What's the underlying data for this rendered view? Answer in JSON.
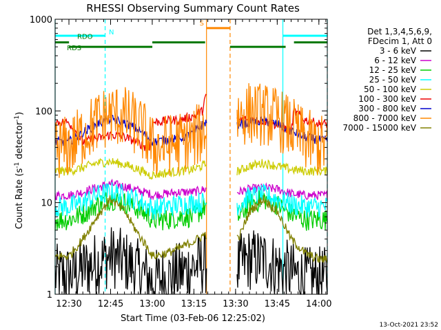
{
  "chart_data": {
    "type": "line",
    "title": "RHESSI Observing Summary Count Rates",
    "xlabel": "Start Time (03-Feb-06 12:25:02)",
    "ylabel_parts": [
      "Count Rate (s",
      "-1",
      " detector",
      "-1",
      ")"
    ],
    "y_scale": "log",
    "ylim": [
      1,
      1000
    ],
    "xlim_minutes": [
      0,
      98
    ],
    "x_ticks": [
      {
        "label": "12:30",
        "min": 4.97
      },
      {
        "label": "12:45",
        "min": 19.97
      },
      {
        "label": "13:00",
        "min": 34.97
      },
      {
        "label": "13:15",
        "min": 49.97
      },
      {
        "label": "13:30",
        "min": 64.97
      },
      {
        "label": "13:45",
        "min": 79.97
      },
      {
        "label": "14:00",
        "min": 94.97
      }
    ],
    "y_ticks": [
      {
        "label": "1000",
        "value": 1000
      },
      {
        "label": "100",
        "value": 100
      },
      {
        "label": "10",
        "value": 10
      },
      {
        "label": "1",
        "value": 1
      }
    ],
    "legend_header": [
      "Det 1,3,4,5,6,9,",
      "FDecim 1, Att 0"
    ],
    "legend_position": "right",
    "data_gap_minutes": [
      54.5,
      65.5
    ],
    "series": [
      {
        "name": "3 - 6 keV",
        "color": "#000000",
        "x": [
          0,
          5,
          10,
          15,
          20,
          25,
          30,
          34,
          35,
          40,
          45,
          50,
          54,
          66,
          70,
          75,
          80,
          85,
          90,
          95,
          98
        ],
        "y": [
          1.6,
          1.6,
          1.9,
          2.2,
          2.6,
          2.3,
          1.8,
          1.5,
          1.4,
          1.5,
          1.7,
          2.0,
          2.2,
          2.0,
          2.4,
          2.4,
          2.0,
          1.7,
          1.5,
          1.5,
          1.5
        ]
      },
      {
        "name": "6 - 12 keV",
        "color": "#cc00cc",
        "x": [
          0,
          5,
          10,
          15,
          20,
          25,
          30,
          34,
          35,
          40,
          45,
          50,
          54,
          66,
          70,
          75,
          80,
          85,
          90,
          95,
          98
        ],
        "y": [
          12,
          12,
          13,
          14.5,
          16,
          15,
          13.5,
          12.5,
          12,
          12.5,
          13,
          13,
          14,
          13,
          14,
          14.5,
          14,
          12.5,
          12,
          12,
          12
        ]
      },
      {
        "name": "12 - 25 keV",
        "color": "#00cc00",
        "x": [
          0,
          5,
          10,
          15,
          20,
          25,
          30,
          34,
          35,
          40,
          45,
          50,
          54,
          66,
          70,
          75,
          80,
          85,
          90,
          95,
          98
        ],
        "y": [
          6.5,
          6.5,
          7.5,
          9.5,
          11,
          10,
          8.5,
          7,
          6.5,
          6.5,
          7,
          7,
          9,
          7,
          9.5,
          11,
          9.5,
          7.5,
          6.5,
          6.5,
          6.5
        ]
      },
      {
        "name": "25 - 50 keV",
        "color": "#00ffff",
        "x": [
          0,
          5,
          10,
          15,
          20,
          25,
          30,
          34,
          35,
          40,
          45,
          50,
          54,
          66,
          70,
          75,
          80,
          85,
          90,
          95,
          98
        ],
        "y": [
          9,
          9,
          10,
          12,
          13,
          12,
          10.5,
          9,
          8.5,
          9,
          9.5,
          10,
          10,
          9.5,
          11.5,
          12,
          11,
          9.5,
          9,
          9,
          9
        ]
      },
      {
        "name": "50 - 100 keV",
        "color": "#cccc00",
        "x": [
          0,
          5,
          10,
          15,
          20,
          25,
          30,
          34,
          35,
          40,
          45,
          50,
          54,
          66,
          70,
          75,
          80,
          85,
          90,
          95,
          98
        ],
        "y": [
          22,
          22,
          24,
          27,
          28,
          26,
          23,
          20,
          20,
          21,
          22,
          23,
          26,
          22,
          25,
          27,
          25,
          23,
          22,
          22,
          22
        ]
      },
      {
        "name": "100 - 300 keV",
        "color": "#ee0000",
        "x": [
          0,
          5,
          10,
          15,
          20,
          25,
          30,
          34,
          35,
          40,
          45,
          50,
          53,
          54,
          66,
          70,
          75,
          80,
          85,
          86,
          90,
          95,
          98
        ],
        "y": [
          75,
          75,
          46,
          50,
          55,
          52,
          45,
          38,
          75,
          78,
          80,
          88,
          100,
          140,
          80,
          80,
          78,
          70,
          60,
          100,
          80,
          72,
          72
        ]
      },
      {
        "name": "300 - 800 keV",
        "color": "#0000cc",
        "x": [
          0,
          5,
          10,
          15,
          20,
          25,
          30,
          34,
          35,
          40,
          45,
          50,
          54,
          66,
          70,
          75,
          80,
          85,
          90,
          95,
          98
        ],
        "y": [
          46,
          46,
          58,
          72,
          82,
          75,
          62,
          50,
          46,
          48,
          50,
          58,
          75,
          70,
          75,
          78,
          72,
          60,
          52,
          48,
          48
        ]
      },
      {
        "name": "800 - 7000 keV",
        "color": "#ff8800",
        "x": [
          0,
          5,
          10,
          15,
          20,
          25,
          30,
          34,
          35,
          40,
          45,
          50,
          54,
          66,
          70,
          75,
          80,
          85,
          90,
          95,
          98
        ],
        "y": [
          40,
          40,
          55,
          75,
          92,
          85,
          68,
          48,
          40,
          42,
          45,
          50,
          65,
          90,
          95,
          92,
          82,
          65,
          48,
          42,
          40
        ]
      },
      {
        "name": "7000 - 15000 keV",
        "color": "#808000",
        "x": [
          0,
          5,
          10,
          15,
          20,
          25,
          30,
          34,
          35,
          40,
          45,
          50,
          54,
          66,
          70,
          75,
          80,
          85,
          90,
          95,
          98
        ],
        "y": [
          2.6,
          2.6,
          4,
          7,
          11,
          8,
          4.5,
          3,
          2.6,
          2.8,
          3.2,
          3.8,
          4.5,
          4,
          8,
          11,
          8,
          4,
          2.8,
          2.4,
          2.4
        ]
      }
    ],
    "annotations": [
      {
        "label": "N",
        "color": "#00ffff",
        "level": 660,
        "x_start": 0,
        "x_end": 18
      },
      {
        "label": "N",
        "color": "#00ffff",
        "level": 660,
        "x_start": 82,
        "x_end": 98
      },
      {
        "label": "RDO",
        "color": "#007700",
        "level": 560,
        "x_start": 0,
        "x_end": 5
      },
      {
        "label": "RDO",
        "color": "#007700",
        "level": 560,
        "x_start": 35,
        "x_end": 54
      },
      {
        "label": "RDO",
        "color": "#007700",
        "level": 560,
        "x_start": 86,
        "x_end": 98
      },
      {
        "label": "RDS",
        "color": "#007700",
        "level": 500,
        "x_start": 5,
        "x_end": 35
      },
      {
        "label": "RDS",
        "color": "#007700",
        "level": 500,
        "x_start": 63,
        "x_end": 83
      },
      {
        "label": "S",
        "color": "#ff8800",
        "level": 800,
        "x_start": 54.5,
        "x_end": 63
      }
    ],
    "vertical_markers": [
      {
        "x": 0,
        "color": "#00ffff",
        "style": "solid"
      },
      {
        "x": 18,
        "color": "#00ffff",
        "style": "dashed"
      },
      {
        "x": 82,
        "color": "#00ffff",
        "style": "solid"
      },
      {
        "x": 98,
        "color": "#00ffff",
        "style": "dashed"
      },
      {
        "x": 54.5,
        "color": "#ff8800",
        "style": "solid"
      },
      {
        "x": 63,
        "color": "#ff8800",
        "style": "dashed"
      }
    ]
  },
  "timestamp": "13-Oct-2021 23:52"
}
